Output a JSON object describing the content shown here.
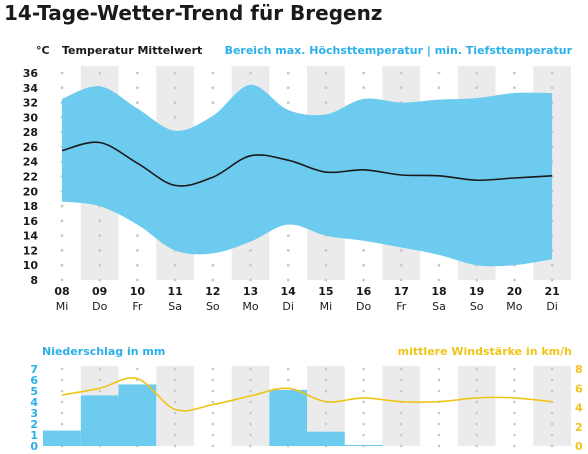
{
  "title": "14-Tage-Wetter-Trend für Bregenz",
  "chart_data": [
    {
      "type": "area",
      "unit_label": "°C",
      "mean_label": "Temperatur Mittelwert",
      "range_label": "Bereich max. Höchsttemperatur | min. Tiefsttemperatur",
      "ylim": [
        8,
        36
      ],
      "yticks": [
        "8",
        "10",
        "12",
        "14",
        "16",
        "18",
        "20",
        "22",
        "24",
        "26",
        "28",
        "30",
        "32",
        "34",
        "36"
      ],
      "x": [
        "08",
        "09",
        "10",
        "11",
        "12",
        "13",
        "14",
        "15",
        "16",
        "17",
        "18",
        "19",
        "20",
        "21"
      ],
      "weekdays": [
        "Mi",
        "Do",
        "Fr",
        "Sa",
        "So",
        "Mo",
        "Di",
        "Mi",
        "Do",
        "Fr",
        "Sa",
        "So",
        "Mo",
        "Di"
      ],
      "series": [
        {
          "name": "Temperatur Mittelwert",
          "values": [
            25.5,
            26.6,
            23.8,
            20.8,
            21.9,
            24.8,
            24.2,
            22.6,
            22.9,
            22.2,
            22.1,
            21.5,
            21.8,
            22.1
          ]
        },
        {
          "name": "max. Höchsttemperatur",
          "values": [
            32.5,
            34.2,
            31.2,
            28.2,
            30.2,
            34.4,
            31.0,
            30.4,
            32.5,
            32.0,
            32.4,
            32.6,
            33.3,
            33.3
          ]
        },
        {
          "name": "min. Tiefsttemperatur",
          "values": [
            18.6,
            18.0,
            15.5,
            12.0,
            11.6,
            13.2,
            15.5,
            14.0,
            13.3,
            12.4,
            11.4,
            10.0,
            10.0,
            10.8
          ]
        }
      ],
      "colors": {
        "band": "#6ecbf0",
        "mean": "#1a1a1a",
        "stripe": "#ebebeb"
      }
    },
    {
      "type": "bar",
      "precip_label": "Niederschlag in mm",
      "wind_label": "mittlere Windstärke in km/h",
      "ylim_left": [
        0,
        7
      ],
      "yticks_left": [
        "0",
        "1",
        "2",
        "3",
        "4",
        "5",
        "6",
        "7"
      ],
      "ylim_right": [
        0,
        8
      ],
      "yticks_right": [
        "0",
        "2",
        "4",
        "6",
        "8"
      ],
      "x": [
        "08",
        "09",
        "10",
        "11",
        "12",
        "13",
        "14",
        "15",
        "16",
        "17",
        "18",
        "19",
        "20",
        "21"
      ],
      "series": [
        {
          "name": "Niederschlag in mm",
          "values": [
            1.4,
            4.6,
            5.6,
            0,
            0,
            0,
            5.1,
            1.3,
            0.1,
            0,
            0,
            0,
            0,
            0
          ]
        },
        {
          "name": "mittlere Windstärke in km/h",
          "values": [
            5.3,
            6.0,
            7.0,
            3.8,
            4.3,
            5.2,
            6.0,
            4.6,
            5.0,
            4.6,
            4.6,
            5.0,
            5.0,
            4.6
          ]
        }
      ],
      "colors": {
        "precip": "#6ecbf0",
        "wind": "#f0c419"
      }
    }
  ]
}
